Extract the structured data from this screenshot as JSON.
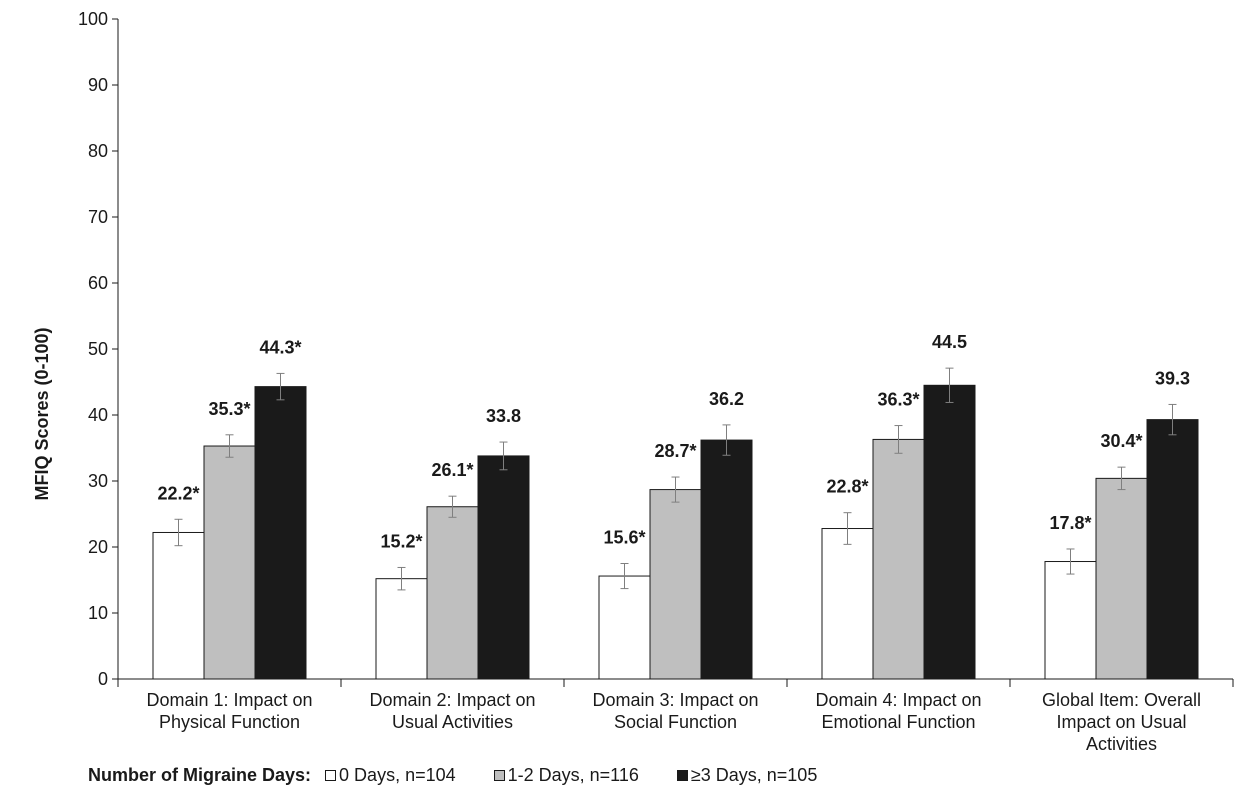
{
  "chart_data": {
    "type": "bar",
    "ylabel": "MFIQ Scores (0-100)",
    "ylim": [
      0,
      100
    ],
    "yticks": [
      0,
      10,
      20,
      30,
      40,
      50,
      60,
      70,
      80,
      90,
      100
    ],
    "grid": false,
    "categories": [
      [
        "Domain 1: Impact on",
        "Physical Function"
      ],
      [
        "Domain 2: Impact on",
        "Usual Activities"
      ],
      [
        "Domain 3: Impact on",
        "Social Function"
      ],
      [
        "Domain 4: Impact on",
        "Emotional Function"
      ],
      [
        "Global Item: Overall",
        "Impact on Usual",
        "Activities"
      ]
    ],
    "series": [
      {
        "name": "0 Days, n=104",
        "color": "#ffffff",
        "values": [
          22.2,
          15.2,
          15.6,
          22.8,
          17.8
        ],
        "labels": [
          "22.2*",
          "15.2*",
          "15.6*",
          "22.8*",
          "17.8*"
        ],
        "error": [
          2.0,
          1.7,
          1.9,
          2.4,
          1.9
        ]
      },
      {
        "name": "1-2 Days, n=116",
        "color": "#bfbfbf",
        "values": [
          35.3,
          26.1,
          28.7,
          36.3,
          30.4
        ],
        "labels": [
          "35.3*",
          "26.1*",
          "28.7*",
          "36.3*",
          "30.4*"
        ],
        "error": [
          1.7,
          1.6,
          1.9,
          2.1,
          1.7
        ]
      },
      {
        "name": "≥3 Days, n=105",
        "color": "#1a1a1a",
        "values": [
          44.3,
          33.8,
          36.2,
          44.5,
          39.3
        ],
        "labels": [
          "44.3*",
          "33.8",
          "36.2",
          "44.5",
          "39.3"
        ],
        "error": [
          2.0,
          2.1,
          2.3,
          2.6,
          2.3
        ]
      }
    ],
    "legend": {
      "title": "Number of Migraine Days:",
      "placement": "bottom-left"
    }
  }
}
